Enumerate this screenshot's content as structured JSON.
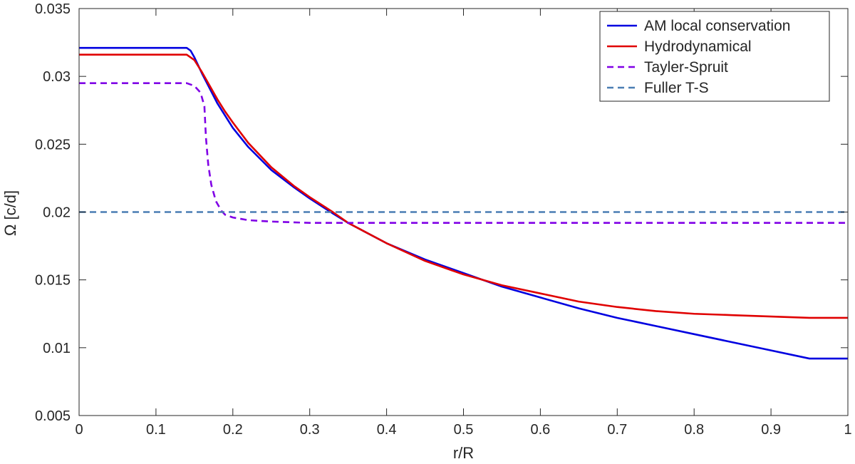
{
  "chart_data": {
    "type": "line",
    "title": "",
    "xlabel": "r/R",
    "ylabel": "Ω [c/d]",
    "xlim": [
      0,
      1
    ],
    "ylim": [
      0.005,
      0.035
    ],
    "xticks": [
      0,
      0.1,
      0.2,
      0.3,
      0.4,
      0.5,
      0.6,
      0.7,
      0.8,
      0.9,
      1
    ],
    "xtick_labels": [
      "0",
      "0.1",
      "0.2",
      "0.3",
      "0.4",
      "0.5",
      "0.6",
      "0.7",
      "0.8",
      "0.9",
      "1"
    ],
    "yticks": [
      0.005,
      0.01,
      0.015,
      0.02,
      0.025,
      0.03,
      0.035
    ],
    "ytick_labels": [
      "0.005",
      "0.01",
      "0.015",
      "0.02",
      "0.025",
      "0.03",
      "0.035"
    ],
    "grid": false,
    "legend_position": "top-right",
    "series": [
      {
        "name": "AM local conservation",
        "color": "#0000e0",
        "dash": "solid",
        "x": [
          0,
          0.14,
          0.145,
          0.15,
          0.16,
          0.17,
          0.18,
          0.19,
          0.2,
          0.22,
          0.25,
          0.28,
          0.3,
          0.33,
          0.35,
          0.4,
          0.45,
          0.5,
          0.55,
          0.6,
          0.65,
          0.7,
          0.75,
          0.8,
          0.85,
          0.9,
          0.95,
          1.0
        ],
        "y": [
          0.0321,
          0.0321,
          0.0319,
          0.0314,
          0.0302,
          0.0291,
          0.028,
          0.0271,
          0.0262,
          0.0248,
          0.0231,
          0.0218,
          0.021,
          0.0199,
          0.0192,
          0.0177,
          0.0165,
          0.0155,
          0.0145,
          0.0137,
          0.0129,
          0.0122,
          0.0116,
          0.011,
          0.0104,
          0.0098,
          0.0092,
          0.0092
        ]
      },
      {
        "name": "Hydrodynamical",
        "color": "#e00000",
        "dash": "solid",
        "x": [
          0,
          0.14,
          0.15,
          0.16,
          0.17,
          0.18,
          0.19,
          0.2,
          0.22,
          0.25,
          0.28,
          0.3,
          0.33,
          0.35,
          0.4,
          0.45,
          0.5,
          0.55,
          0.6,
          0.65,
          0.7,
          0.75,
          0.8,
          0.85,
          0.9,
          0.95,
          1.0
        ],
        "y": [
          0.0316,
          0.0316,
          0.0312,
          0.0303,
          0.0293,
          0.0283,
          0.0274,
          0.0266,
          0.0251,
          0.0233,
          0.0219,
          0.0211,
          0.02,
          0.0192,
          0.0177,
          0.0164,
          0.0154,
          0.0146,
          0.014,
          0.0134,
          0.013,
          0.0127,
          0.0125,
          0.0124,
          0.0123,
          0.0122,
          0.0122
        ]
      },
      {
        "name": "Tayler-Spruit",
        "color": "#8000e6",
        "dash": "dashed",
        "x": [
          0,
          0.14,
          0.15,
          0.158,
          0.163,
          0.165,
          0.168,
          0.172,
          0.178,
          0.185,
          0.19,
          0.2,
          0.22,
          0.25,
          0.3,
          0.4,
          0.5,
          0.6,
          0.7,
          0.8,
          0.9,
          1.0
        ],
        "y": [
          0.0295,
          0.0295,
          0.0293,
          0.0288,
          0.0278,
          0.0255,
          0.0235,
          0.022,
          0.0208,
          0.0201,
          0.0198,
          0.0196,
          0.0194,
          0.0193,
          0.0192,
          0.0192,
          0.0192,
          0.0192,
          0.0192,
          0.0192,
          0.0192,
          0.0192
        ]
      },
      {
        "name": "Fuller T-S",
        "color": "#4a7db3",
        "dash": "dashed",
        "x": [
          0,
          1
        ],
        "y": [
          0.02,
          0.02
        ]
      }
    ]
  }
}
